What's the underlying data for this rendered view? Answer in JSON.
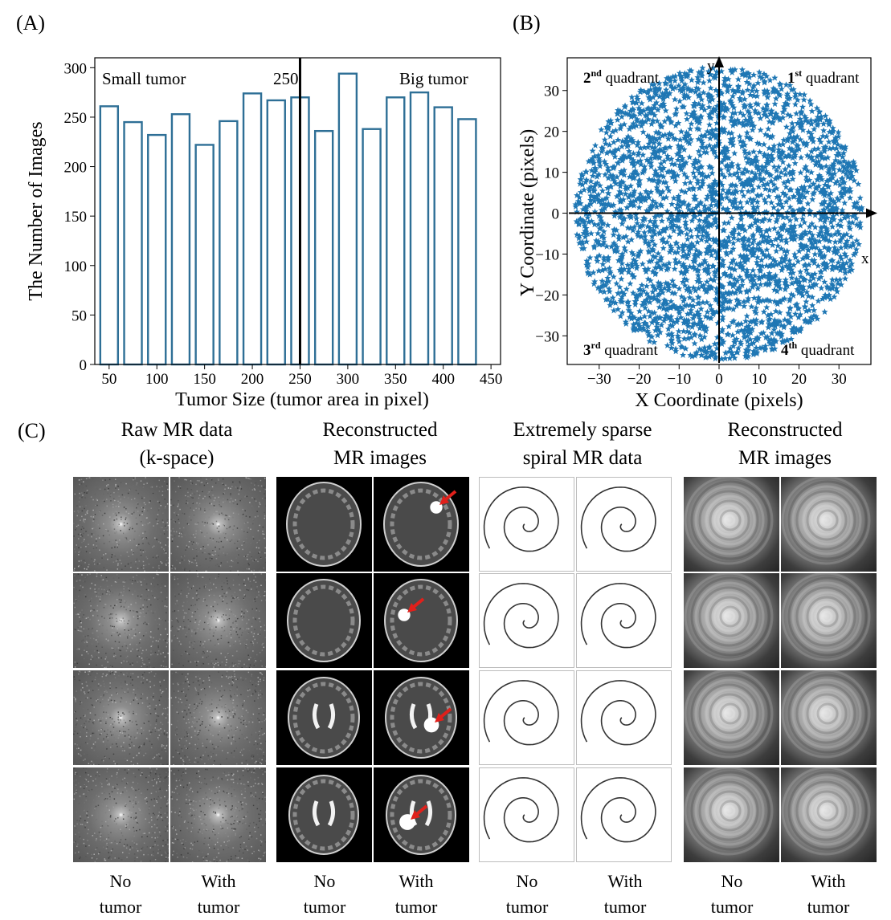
{
  "panels": {
    "a": "(A)",
    "b": "(B)",
    "c": "(C)"
  },
  "chart_data": [
    {
      "type": "bar",
      "title": "",
      "xlabel": "Tumor Size (tumor area in pixel)",
      "ylabel": "The Number of Images",
      "categories": [
        50,
        75,
        100,
        125,
        150,
        175,
        200,
        225,
        250,
        275,
        300,
        325,
        350,
        375,
        400,
        425
      ],
      "values": [
        261,
        245,
        232,
        253,
        222,
        246,
        274,
        267,
        270,
        236,
        294,
        238,
        270,
        275,
        260,
        248
      ],
      "xticks": [
        50,
        100,
        150,
        200,
        250,
        300,
        350,
        400,
        450
      ],
      "yticks": [
        0,
        50,
        100,
        150,
        200,
        250,
        300
      ],
      "xlim": [
        35,
        460
      ],
      "ylim": [
        0,
        310
      ],
      "threshold": 250,
      "annotations": {
        "left": "Small tumor",
        "threshold_label": "250",
        "right": "Big tumor"
      }
    },
    {
      "type": "scatter",
      "xlabel": "X Coordinate (pixels)",
      "ylabel": "Y Coordinate (pixels)",
      "xticks": [
        -30,
        -20,
        -10,
        0,
        10,
        20,
        30
      ],
      "yticks": [
        -30,
        -20,
        -10,
        0,
        10,
        20,
        30
      ],
      "xlim": [
        -38,
        38
      ],
      "ylim": [
        -37,
        38
      ],
      "points_description_radius": 36,
      "point_count": 3000,
      "marker_color": "#1f77b4",
      "axis_x_label": "x",
      "axis_y_label": "y",
      "quadrants": [
        {
          "num": "2",
          "sup": "nd",
          "text": " quadrant"
        },
        {
          "num": "1",
          "sup": "st",
          "text": " quadrant"
        },
        {
          "num": "3",
          "sup": "rd",
          "text": " quadrant"
        },
        {
          "num": "4",
          "sup": "th",
          "text": " quadrant"
        }
      ]
    }
  ],
  "panel_c": {
    "titles": [
      {
        "line1": "Raw MR data",
        "line2": "(k-space)"
      },
      {
        "line1": "Reconstructed",
        "line2": "MR images"
      },
      {
        "line1": "Extremely sparse",
        "line2": "spiral MR data"
      },
      {
        "line1": "Reconstructed",
        "line2": "MR images"
      }
    ],
    "bottom_labels": [
      {
        "line1": "No",
        "line2": "tumor"
      },
      {
        "line1": "With",
        "line2": "tumor"
      },
      {
        "line1": "No",
        "line2": "tumor"
      },
      {
        "line1": "With",
        "line2": "tumor"
      },
      {
        "line1": "No",
        "line2": "tumor"
      },
      {
        "line1": "With",
        "line2": "tumor"
      },
      {
        "line1": "No",
        "line2": "tumor"
      },
      {
        "line1": "With",
        "line2": "tumor"
      }
    ],
    "arrow_color": "#e0201b",
    "spiral_color": "#333333"
  }
}
